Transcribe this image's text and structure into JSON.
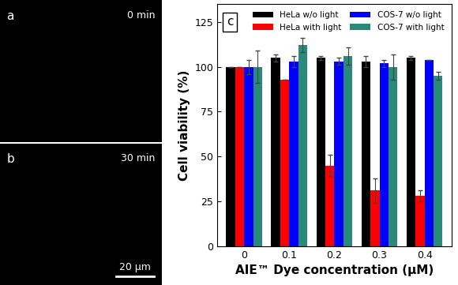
{
  "chart_data": {
    "type": "bar",
    "panel_label": "c",
    "x_label": "AIE™ Dye concentration (μM)",
    "y_label": "Cell viability (%)",
    "categories": [
      "0",
      "0.1",
      "0.2",
      "0.3",
      "0.4"
    ],
    "series": [
      {
        "name": "HeLa w/o light",
        "color": "#000000",
        "values": [
          100,
          105,
          105,
          103,
          105
        ],
        "errors": [
          0,
          2,
          1,
          3,
          1
        ]
      },
      {
        "name": "HeLa with light",
        "color": "#ff0000",
        "values": [
          100,
          93,
          45,
          31,
          28
        ],
        "errors": [
          0,
          0,
          6,
          7,
          3
        ]
      },
      {
        "name": "COS-7 w/o light",
        "color": "#0000ff",
        "values": [
          100,
          103,
          103,
          102,
          104
        ],
        "errors": [
          4,
          3,
          2,
          2,
          0
        ]
      },
      {
        "name": "COS-7 with light",
        "color": "#2a8a7a",
        "values": [
          100,
          112,
          106,
          100,
          95
        ],
        "errors": [
          9,
          4,
          5,
          7,
          2
        ]
      }
    ],
    "ylim": [
      0,
      135
    ],
    "yticks": [
      0,
      25,
      50,
      75,
      100,
      125
    ],
    "legend": "upper center",
    "grid": false
  },
  "images": [
    {
      "label": "a",
      "caption": "0 min"
    },
    {
      "label": "b",
      "caption": "30 min",
      "scale_bar": "20 μm"
    }
  ]
}
